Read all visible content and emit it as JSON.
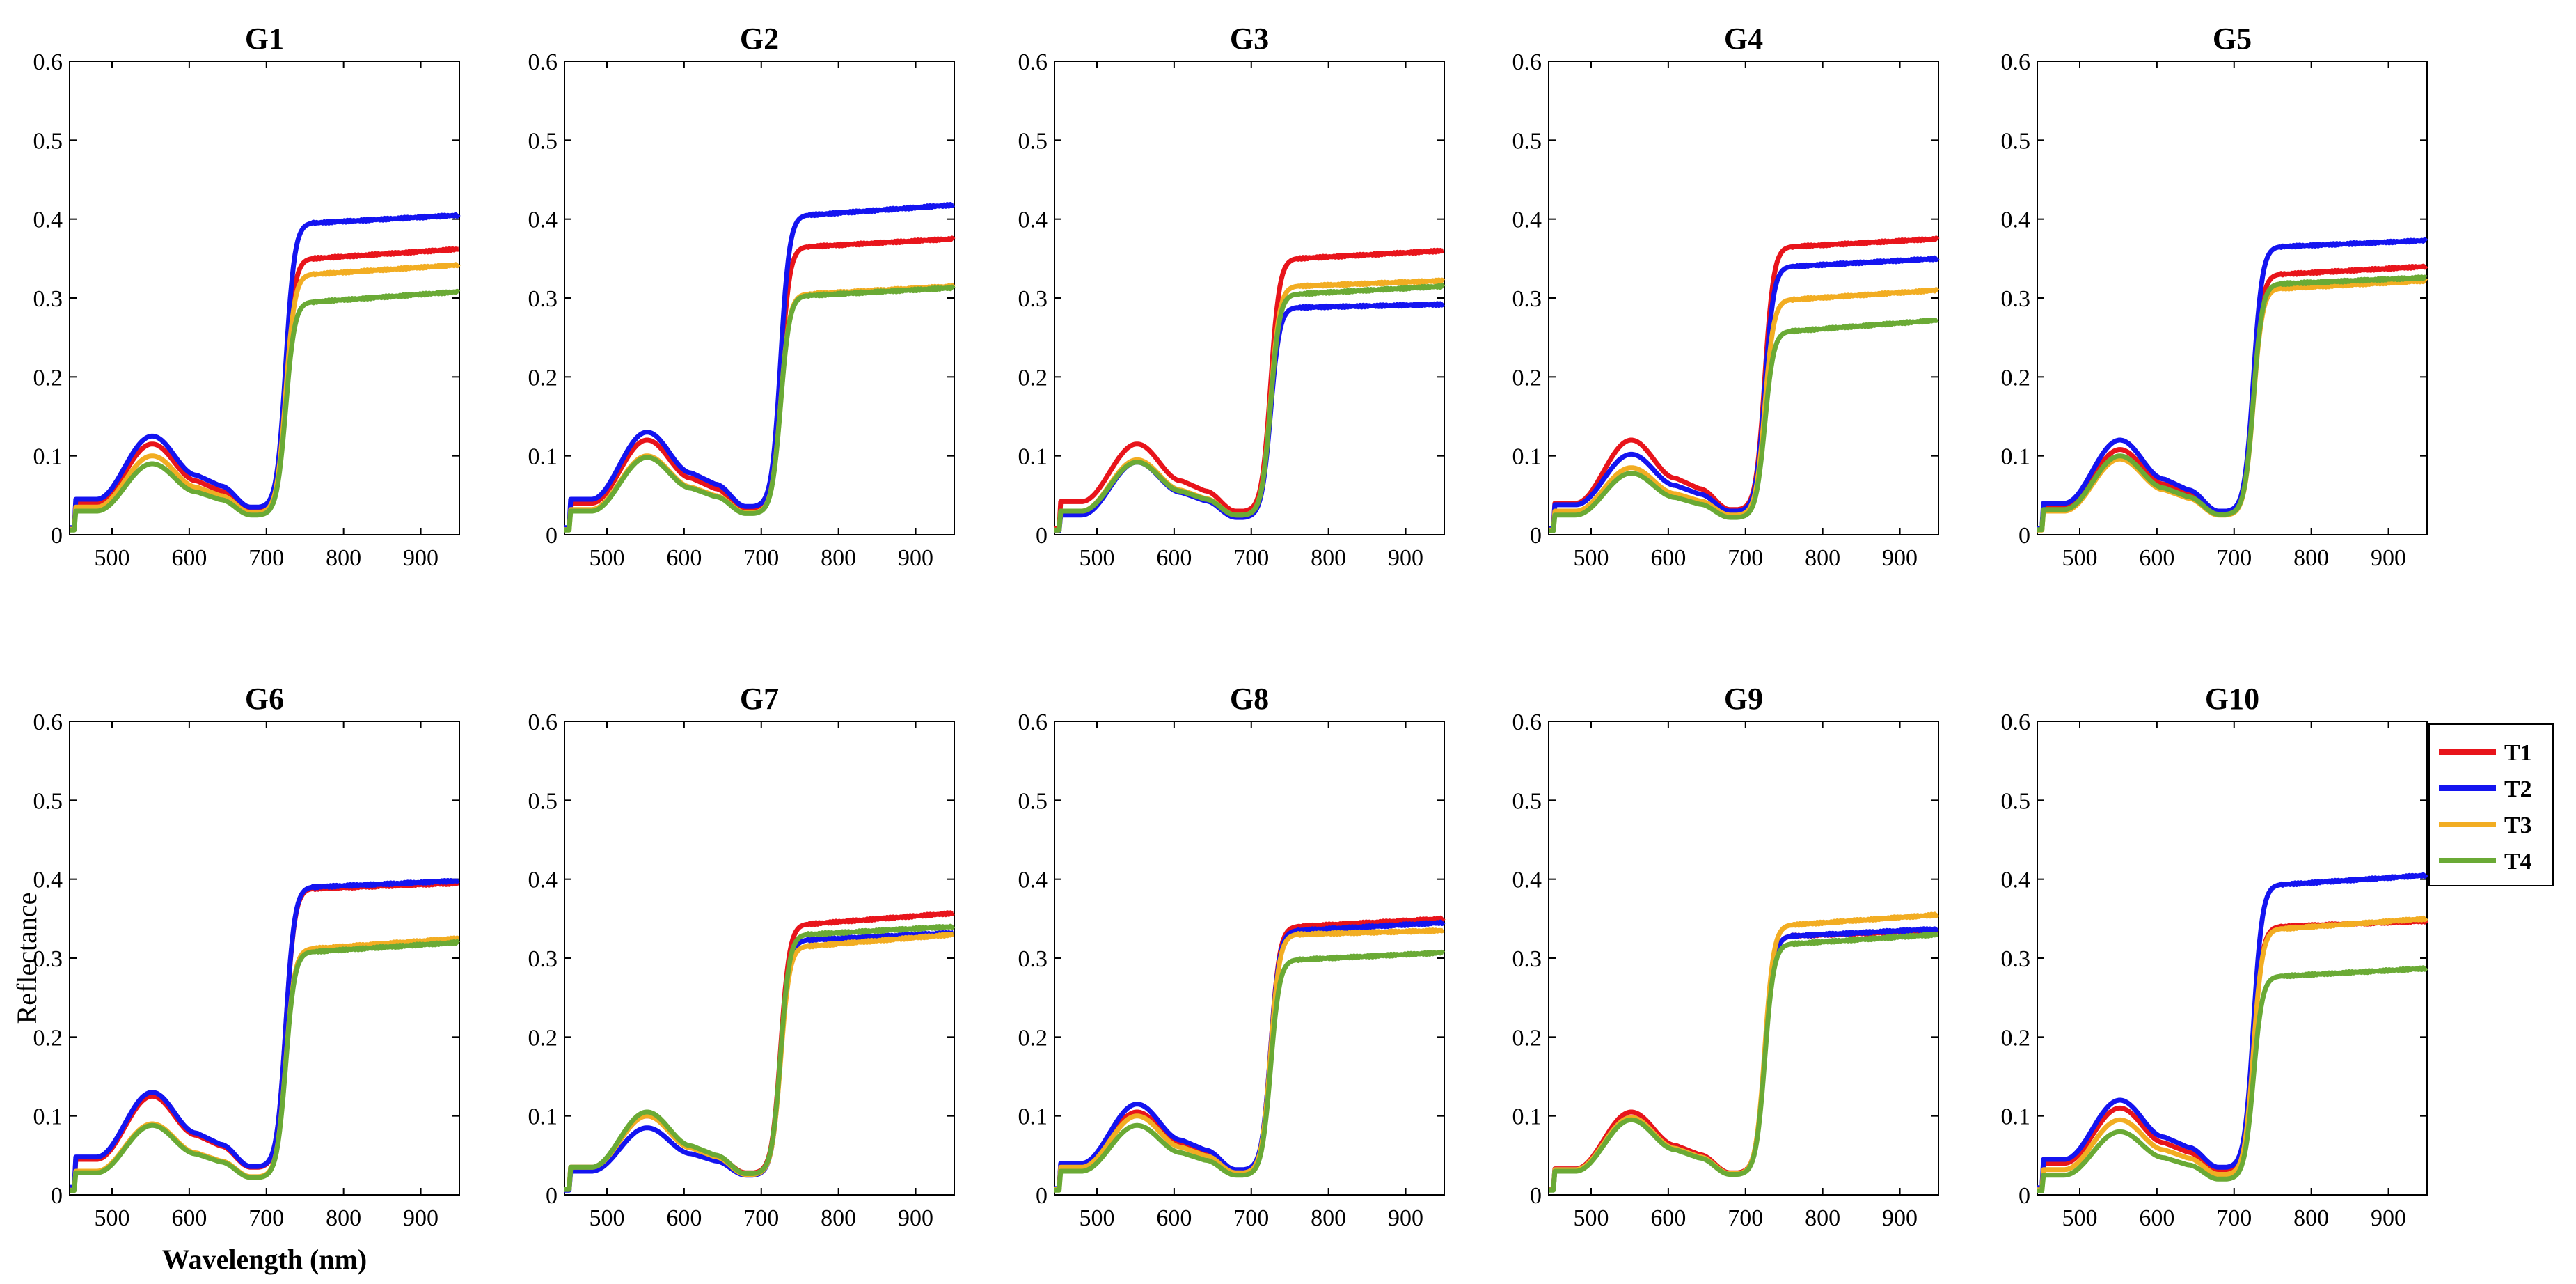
{
  "figure": {
    "ylabel": "Reflectance",
    "xlabel": "Wavelength (nm)",
    "legend": {
      "placement": "right of bottom row",
      "entries": [
        "T1",
        "T2",
        "T3",
        "T4"
      ]
    },
    "colors": {
      "T1": "#e8141b",
      "T2": "#1414f0",
      "T3": "#f2ad22",
      "T4": "#6aaa35"
    }
  },
  "chart_data": [
    {
      "type": "line",
      "title": "G1",
      "xlim": [
        445,
        950
      ],
      "ylim": [
        0,
        0.6
      ],
      "xticks": [
        500,
        600,
        700,
        800,
        900
      ],
      "yticks": [
        "0",
        "0.1",
        "0.2",
        "0.3",
        "0.4",
        "0.5",
        "0.6"
      ],
      "series": [
        {
          "name": "T1",
          "green_peak": 0.115,
          "blue": 0.04,
          "red_dip": 0.03,
          "nir_start": 0.35,
          "nir_end": 0.362
        },
        {
          "name": "T2",
          "green_peak": 0.125,
          "blue": 0.045,
          "red_dip": 0.035,
          "nir_start": 0.395,
          "nir_end": 0.405
        },
        {
          "name": "T3",
          "green_peak": 0.1,
          "blue": 0.035,
          "red_dip": 0.028,
          "nir_start": 0.33,
          "nir_end": 0.342
        },
        {
          "name": "T4",
          "green_peak": 0.09,
          "blue": 0.03,
          "red_dip": 0.025,
          "nir_start": 0.295,
          "nir_end": 0.308
        }
      ]
    },
    {
      "type": "line",
      "title": "G2",
      "xlim": [
        445,
        950
      ],
      "ylim": [
        0,
        0.6
      ],
      "xticks": [
        500,
        600,
        700,
        800,
        900
      ],
      "yticks": [
        "0",
        "0.1",
        "0.2",
        "0.3",
        "0.4",
        "0.5",
        "0.6"
      ],
      "series": [
        {
          "name": "T1",
          "green_peak": 0.12,
          "blue": 0.04,
          "red_dip": 0.032,
          "nir_start": 0.365,
          "nir_end": 0.375
        },
        {
          "name": "T2",
          "green_peak": 0.13,
          "blue": 0.045,
          "red_dip": 0.036,
          "nir_start": 0.405,
          "nir_end": 0.418
        },
        {
          "name": "T3",
          "green_peak": 0.1,
          "blue": 0.032,
          "red_dip": 0.028,
          "nir_start": 0.305,
          "nir_end": 0.315
        },
        {
          "name": "T4",
          "green_peak": 0.098,
          "blue": 0.03,
          "red_dip": 0.027,
          "nir_start": 0.303,
          "nir_end": 0.313
        }
      ]
    },
    {
      "type": "line",
      "title": "G3",
      "xlim": [
        445,
        950
      ],
      "ylim": [
        0,
        0.6
      ],
      "xticks": [
        500,
        600,
        700,
        800,
        900
      ],
      "yticks": [
        "0",
        "0.1",
        "0.2",
        "0.3",
        "0.4",
        "0.5",
        "0.6"
      ],
      "series": [
        {
          "name": "T1",
          "green_peak": 0.115,
          "blue": 0.042,
          "red_dip": 0.03,
          "nir_start": 0.35,
          "nir_end": 0.36
        },
        {
          "name": "T2",
          "green_peak": 0.092,
          "blue": 0.025,
          "red_dip": 0.022,
          "nir_start": 0.288,
          "nir_end": 0.292
        },
        {
          "name": "T3",
          "green_peak": 0.095,
          "blue": 0.03,
          "red_dip": 0.025,
          "nir_start": 0.315,
          "nir_end": 0.322
        },
        {
          "name": "T4",
          "green_peak": 0.092,
          "blue": 0.03,
          "red_dip": 0.025,
          "nir_start": 0.305,
          "nir_end": 0.315
        }
      ]
    },
    {
      "type": "line",
      "title": "G4",
      "xlim": [
        445,
        950
      ],
      "ylim": [
        0,
        0.6
      ],
      "xticks": [
        500,
        600,
        700,
        800,
        900
      ],
      "yticks": [
        "0",
        "0.1",
        "0.2",
        "0.3",
        "0.4",
        "0.5",
        "0.6"
      ],
      "series": [
        {
          "name": "T1",
          "green_peak": 0.12,
          "blue": 0.04,
          "red_dip": 0.032,
          "nir_start": 0.365,
          "nir_end": 0.375
        },
        {
          "name": "T2",
          "green_peak": 0.102,
          "blue": 0.038,
          "red_dip": 0.03,
          "nir_start": 0.34,
          "nir_end": 0.35
        },
        {
          "name": "T3",
          "green_peak": 0.085,
          "blue": 0.03,
          "red_dip": 0.025,
          "nir_start": 0.298,
          "nir_end": 0.31
        },
        {
          "name": "T4",
          "green_peak": 0.078,
          "blue": 0.025,
          "red_dip": 0.022,
          "nir_start": 0.258,
          "nir_end": 0.272
        }
      ]
    },
    {
      "type": "line",
      "title": "G5",
      "xlim": [
        445,
        950
      ],
      "ylim": [
        0,
        0.6
      ],
      "xticks": [
        500,
        600,
        700,
        800,
        900
      ],
      "yticks": [
        "0",
        "0.1",
        "0.2",
        "0.3",
        "0.4",
        "0.5",
        "0.6"
      ],
      "series": [
        {
          "name": "T1",
          "green_peak": 0.108,
          "blue": 0.035,
          "red_dip": 0.028,
          "nir_start": 0.33,
          "nir_end": 0.34
        },
        {
          "name": "T2",
          "green_peak": 0.12,
          "blue": 0.04,
          "red_dip": 0.03,
          "nir_start": 0.365,
          "nir_end": 0.373
        },
        {
          "name": "T3",
          "green_peak": 0.096,
          "blue": 0.03,
          "red_dip": 0.025,
          "nir_start": 0.312,
          "nir_end": 0.322
        },
        {
          "name": "T4",
          "green_peak": 0.1,
          "blue": 0.032,
          "red_dip": 0.026,
          "nir_start": 0.318,
          "nir_end": 0.326
        }
      ]
    },
    {
      "type": "line",
      "title": "G6",
      "xlim": [
        445,
        950
      ],
      "ylim": [
        0,
        0.6
      ],
      "xticks": [
        500,
        600,
        700,
        800,
        900
      ],
      "yticks": [
        "0",
        "0.1",
        "0.2",
        "0.3",
        "0.4",
        "0.5",
        "0.6"
      ],
      "series": [
        {
          "name": "T1",
          "green_peak": 0.125,
          "blue": 0.045,
          "red_dip": 0.035,
          "nir_start": 0.388,
          "nir_end": 0.395
        },
        {
          "name": "T2",
          "green_peak": 0.13,
          "blue": 0.048,
          "red_dip": 0.036,
          "nir_start": 0.39,
          "nir_end": 0.398
        },
        {
          "name": "T3",
          "green_peak": 0.09,
          "blue": 0.03,
          "red_dip": 0.023,
          "nir_start": 0.312,
          "nir_end": 0.325
        },
        {
          "name": "T4",
          "green_peak": 0.088,
          "blue": 0.028,
          "red_dip": 0.022,
          "nir_start": 0.308,
          "nir_end": 0.32
        }
      ]
    },
    {
      "type": "line",
      "title": "G7",
      "xlim": [
        445,
        950
      ],
      "ylim": [
        0,
        0.6
      ],
      "xticks": [
        500,
        600,
        700,
        800,
        900
      ],
      "yticks": [
        "0",
        "0.1",
        "0.2",
        "0.3",
        "0.4",
        "0.5",
        "0.6"
      ],
      "series": [
        {
          "name": "T1",
          "green_peak": 0.1,
          "blue": 0.035,
          "red_dip": 0.028,
          "nir_start": 0.343,
          "nir_end": 0.357
        },
        {
          "name": "T2",
          "green_peak": 0.085,
          "blue": 0.03,
          "red_dip": 0.025,
          "nir_start": 0.323,
          "nir_end": 0.332
        },
        {
          "name": "T3",
          "green_peak": 0.1,
          "blue": 0.035,
          "red_dip": 0.026,
          "nir_start": 0.315,
          "nir_end": 0.33
        },
        {
          "name": "T4",
          "green_peak": 0.105,
          "blue": 0.035,
          "red_dip": 0.027,
          "nir_start": 0.33,
          "nir_end": 0.34
        }
      ]
    },
    {
      "type": "line",
      "title": "G8",
      "xlim": [
        445,
        950
      ],
      "ylim": [
        0,
        0.6
      ],
      "xticks": [
        500,
        600,
        700,
        800,
        900
      ],
      "yticks": [
        "0",
        "0.1",
        "0.2",
        "0.3",
        "0.4",
        "0.5",
        "0.6"
      ],
      "series": [
        {
          "name": "T1",
          "green_peak": 0.105,
          "blue": 0.038,
          "red_dip": 0.03,
          "nir_start": 0.34,
          "nir_end": 0.35
        },
        {
          "name": "T2",
          "green_peak": 0.115,
          "blue": 0.04,
          "red_dip": 0.032,
          "nir_start": 0.335,
          "nir_end": 0.345
        },
        {
          "name": "T3",
          "green_peak": 0.1,
          "blue": 0.035,
          "red_dip": 0.028,
          "nir_start": 0.33,
          "nir_end": 0.335
        },
        {
          "name": "T4",
          "green_peak": 0.088,
          "blue": 0.03,
          "red_dip": 0.025,
          "nir_start": 0.298,
          "nir_end": 0.307
        }
      ]
    },
    {
      "type": "line",
      "title": "G9",
      "xlim": [
        445,
        950
      ],
      "ylim": [
        0,
        0.6
      ],
      "xticks": [
        500,
        600,
        700,
        800,
        900
      ],
      "yticks": [
        "0",
        "0.1",
        "0.2",
        "0.3",
        "0.4",
        "0.5",
        "0.6"
      ],
      "series": [
        {
          "name": "T1",
          "green_peak": 0.105,
          "blue": 0.033,
          "red_dip": 0.028,
          "nir_start": 0.328,
          "nir_end": 0.335
        },
        {
          "name": "T2",
          "green_peak": 0.098,
          "blue": 0.032,
          "red_dip": 0.027,
          "nir_start": 0.328,
          "nir_end": 0.337
        },
        {
          "name": "T3",
          "green_peak": 0.098,
          "blue": 0.032,
          "red_dip": 0.027,
          "nir_start": 0.342,
          "nir_end": 0.355
        },
        {
          "name": "T4",
          "green_peak": 0.095,
          "blue": 0.03,
          "red_dip": 0.026,
          "nir_start": 0.318,
          "nir_end": 0.33
        }
      ]
    },
    {
      "type": "line",
      "title": "G10",
      "xlim": [
        445,
        950
      ],
      "ylim": [
        0,
        0.6
      ],
      "xticks": [
        500,
        600,
        700,
        800,
        900
      ],
      "yticks": [
        "0",
        "0.1",
        "0.2",
        "0.3",
        "0.4",
        "0.5",
        "0.6"
      ],
      "series": [
        {
          "name": "T1",
          "green_peak": 0.11,
          "blue": 0.04,
          "red_dip": 0.03,
          "nir_start": 0.34,
          "nir_end": 0.347
        },
        {
          "name": "T2",
          "green_peak": 0.12,
          "blue": 0.045,
          "red_dip": 0.035,
          "nir_start": 0.393,
          "nir_end": 0.405
        },
        {
          "name": "T3",
          "green_peak": 0.095,
          "blue": 0.032,
          "red_dip": 0.026,
          "nir_start": 0.337,
          "nir_end": 0.35
        },
        {
          "name": "T4",
          "green_peak": 0.08,
          "blue": 0.025,
          "red_dip": 0.02,
          "nir_start": 0.277,
          "nir_end": 0.287
        }
      ]
    }
  ]
}
